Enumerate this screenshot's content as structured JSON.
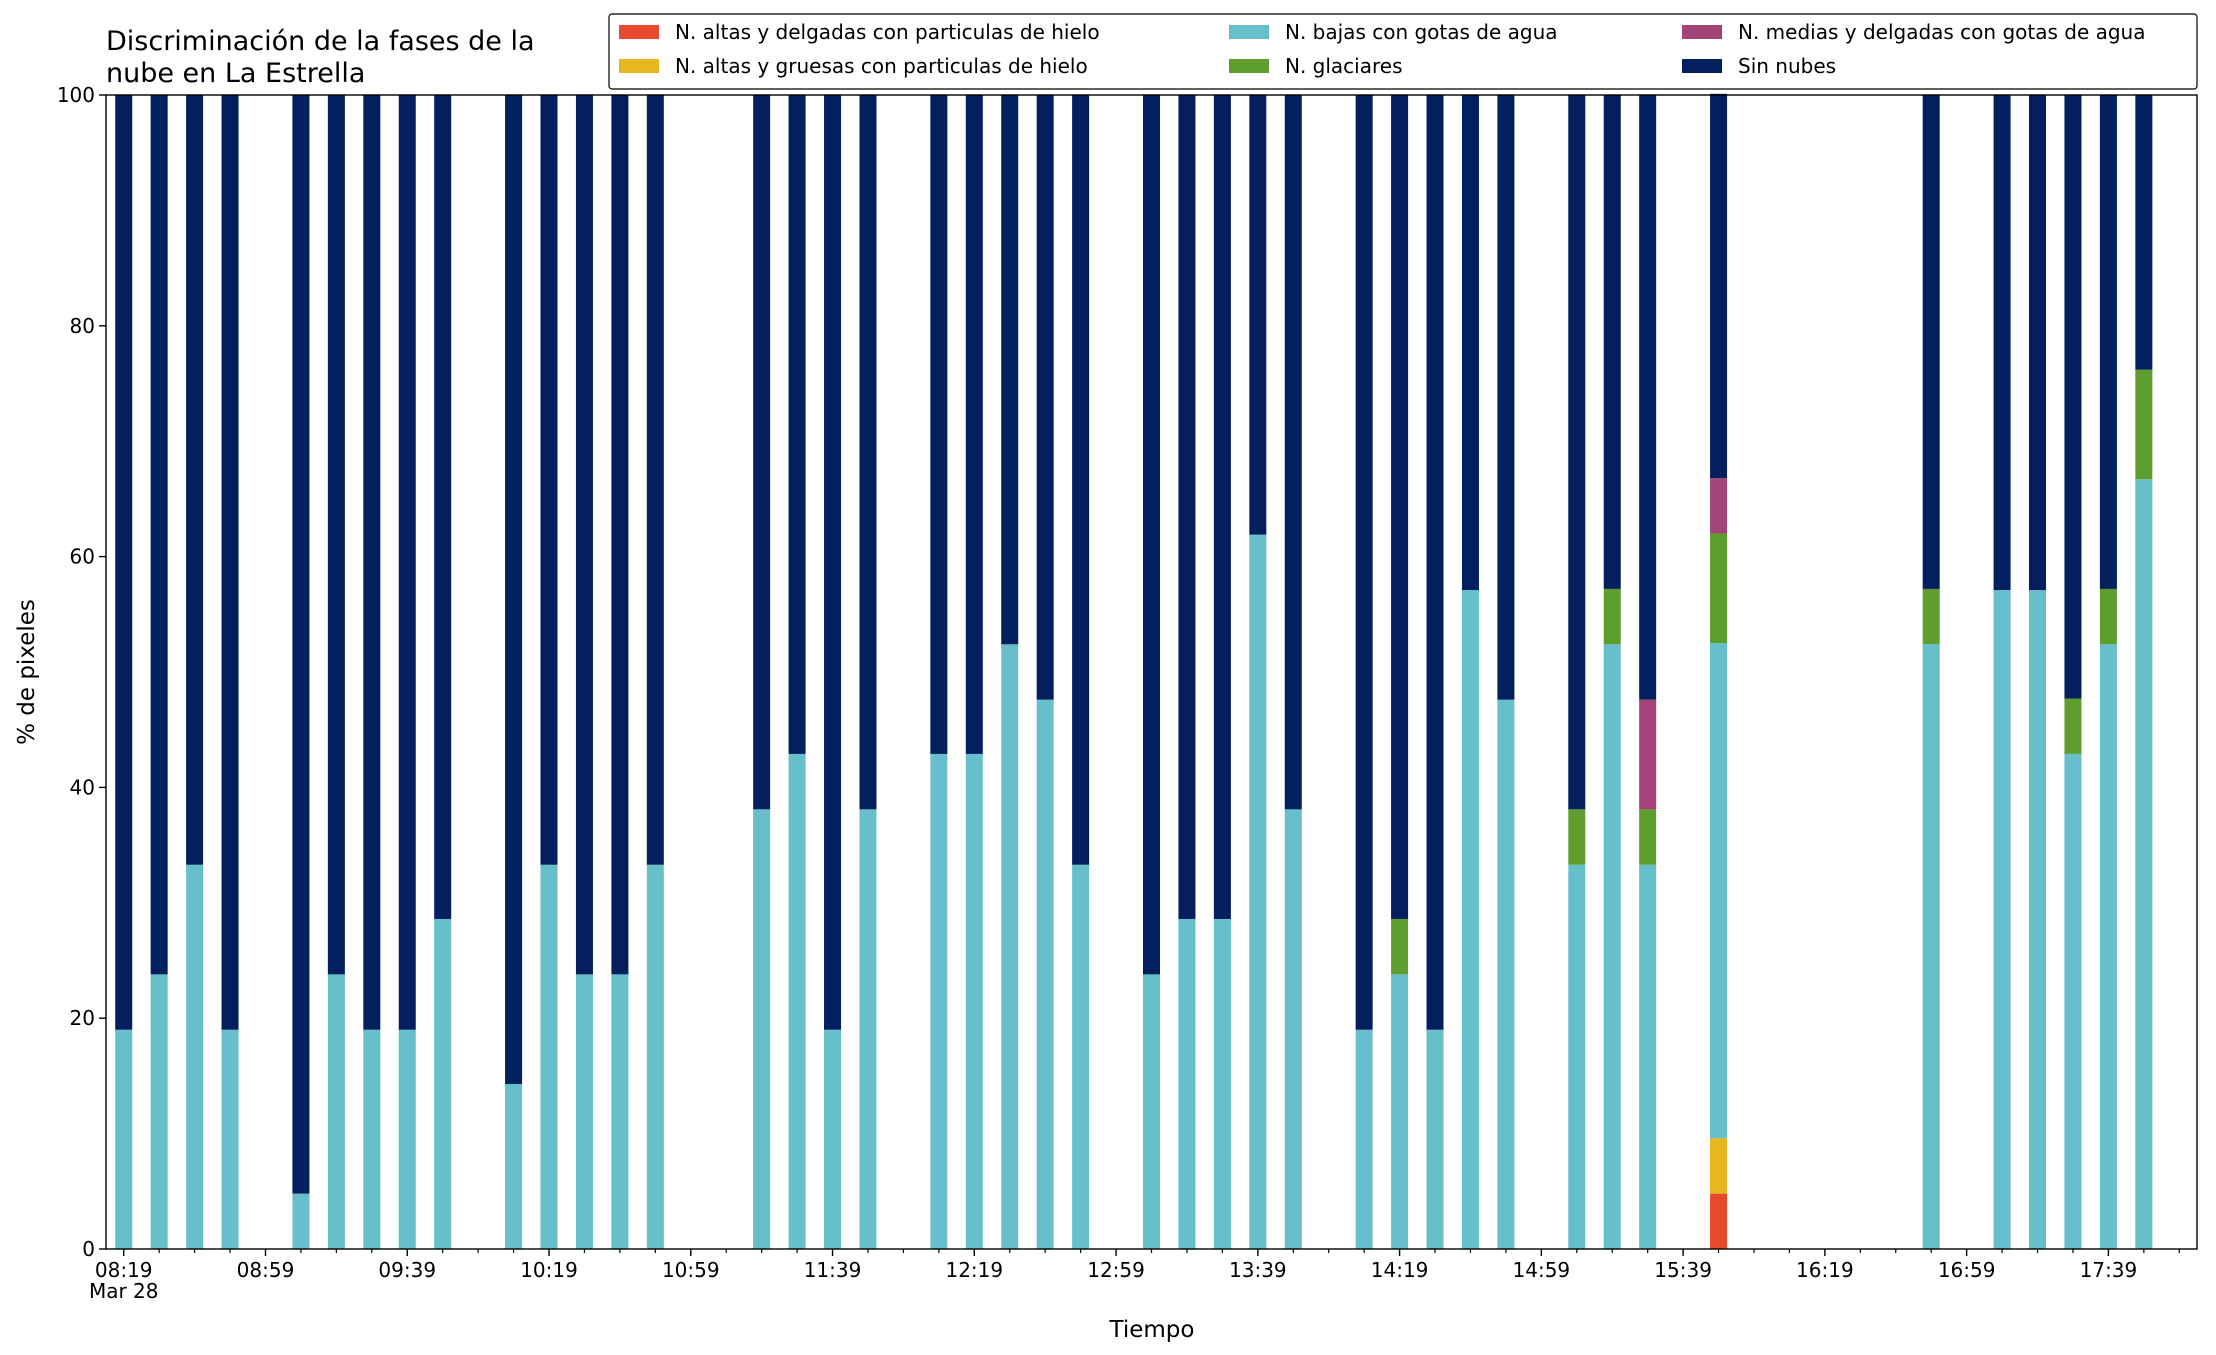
{
  "chart_data": {
    "type": "stacked_bar",
    "title": "Discriminación de la fases de la\nnube en La Estrella",
    "xlabel": "Tiempo",
    "ylabel": "% de pixeles",
    "x": [
      "08:19",
      "08:29",
      "08:39",
      "08:49",
      "09:09",
      "09:19",
      "09:29",
      "09:39",
      "09:49",
      "10:09",
      "10:19",
      "10:29",
      "10:39",
      "10:49",
      "11:19",
      "11:29",
      "11:39",
      "11:49",
      "12:09",
      "12:19",
      "12:29",
      "12:39",
      "12:49",
      "13:09",
      "13:19",
      "13:29",
      "13:39",
      "13:49",
      "14:09",
      "14:19",
      "14:29",
      "14:39",
      "14:49",
      "15:09",
      "15:19",
      "15:29",
      "15:49",
      "16:49",
      "17:09",
      "17:19",
      "17:29",
      "17:39",
      "17:49"
    ],
    "series": [
      {
        "name": "N. altas y delgadas con particulas de hielo",
        "color": "#e8482c",
        "values": [
          0,
          0,
          0,
          0,
          0,
          0,
          0,
          0,
          0,
          0,
          0,
          0,
          0,
          0,
          0,
          0,
          0,
          0,
          0,
          0,
          0,
          0,
          0,
          0,
          0,
          0,
          0,
          0,
          0,
          0,
          0,
          0,
          0,
          0,
          0,
          0,
          4.8,
          0,
          0,
          0,
          0,
          0,
          0
        ]
      },
      {
        "name": "N. altas y gruesas con particulas de hielo",
        "color": "#e6b81e",
        "values": [
          0,
          0,
          0,
          0,
          0,
          0,
          0,
          0,
          0,
          0,
          0,
          0,
          0,
          0,
          0,
          0,
          0,
          0,
          0,
          0,
          0,
          0,
          0,
          0,
          0,
          0,
          0,
          0,
          0,
          0,
          0,
          0,
          0,
          0,
          0,
          0,
          4.8,
          0,
          0,
          0,
          0,
          0,
          0
        ]
      },
      {
        "name": "N. bajas con gotas de agua",
        "color": "#66bfca",
        "values": [
          19.0,
          23.8,
          33.3,
          19.0,
          4.8,
          23.8,
          19.0,
          19.0,
          28.6,
          14.3,
          33.3,
          23.8,
          23.8,
          33.3,
          38.1,
          42.9,
          19.0,
          38.1,
          42.9,
          42.9,
          52.4,
          47.6,
          33.3,
          23.8,
          28.6,
          28.6,
          61.9,
          38.1,
          19.0,
          23.8,
          19.0,
          57.1,
          47.6,
          33.3,
          52.4,
          33.3,
          42.9,
          52.4,
          57.1,
          57.1,
          42.9,
          52.4,
          66.7
        ]
      },
      {
        "name": "N. glaciares",
        "color": "#5e9e2e",
        "values": [
          0,
          0,
          0,
          0,
          0,
          0,
          0,
          0,
          0,
          0,
          0,
          0,
          0,
          0,
          0,
          0,
          0,
          0,
          0,
          0,
          0,
          0,
          0,
          0,
          0,
          0,
          0,
          0,
          0,
          4.8,
          0,
          0,
          0,
          4.8,
          4.8,
          4.8,
          9.5,
          4.8,
          0,
          0,
          4.8,
          4.8,
          9.5
        ]
      },
      {
        "name": "N. medias y delgadas con gotas de agua",
        "color": "#a34479",
        "values": [
          0,
          0,
          0,
          0,
          0,
          0,
          0,
          0,
          0,
          0,
          0,
          0,
          0,
          0,
          0,
          0,
          0,
          0,
          0,
          0,
          0,
          0,
          0,
          0,
          0,
          0,
          0,
          0,
          0,
          0,
          0,
          0,
          0,
          0,
          0,
          9.5,
          4.8,
          0,
          0,
          0,
          0,
          0,
          0
        ]
      },
      {
        "name": "Sin nubes",
        "color": "#031f5e",
        "values": [
          81.0,
          76.2,
          66.7,
          81.0,
          95.2,
          76.2,
          81.0,
          81.0,
          71.4,
          85.7,
          66.7,
          76.2,
          76.2,
          66.7,
          61.9,
          57.1,
          81.0,
          61.9,
          57.1,
          57.1,
          47.6,
          52.4,
          66.7,
          76.2,
          71.4,
          71.4,
          38.1,
          61.9,
          81.0,
          71.4,
          81.0,
          42.9,
          52.4,
          61.9,
          42.8,
          52.4,
          33.3,
          42.8,
          42.9,
          42.9,
          52.3,
          42.8,
          23.8
        ]
      }
    ],
    "xlim": [
      "08:14",
      "18:04"
    ],
    "xticks": [
      {
        "value": "08:19",
        "label": "08:19\nMar 28"
      },
      "08:59",
      "09:39",
      "10:19",
      "10:59",
      "11:39",
      "12:19",
      "12:59",
      "13:39",
      "14:19",
      "14:59",
      "15:39",
      "16:19",
      "16:59",
      "17:39"
    ],
    "xminorticks": [
      "08:29",
      "08:39",
      "08:49",
      "09:09",
      "09:19",
      "09:29",
      "09:49",
      "09:59",
      "10:09",
      "10:29",
      "10:39",
      "10:49",
      "11:09",
      "11:19",
      "11:29",
      "11:49",
      "11:59",
      "12:09",
      "12:29",
      "12:39",
      "12:49",
      "13:09",
      "13:19",
      "13:29",
      "13:49",
      "13:59",
      "14:09",
      "14:29",
      "14:39",
      "14:49",
      "15:09",
      "15:19",
      "15:29",
      "15:49",
      "15:59",
      "16:09",
      "16:29",
      "16:39",
      "16:49",
      "17:09",
      "17:19",
      "17:29",
      "17:49",
      "17:59"
    ],
    "ylim": [
      0,
      100
    ],
    "yticks": [
      0,
      20,
      40,
      60,
      80,
      100
    ],
    "legend": "upper right"
  }
}
